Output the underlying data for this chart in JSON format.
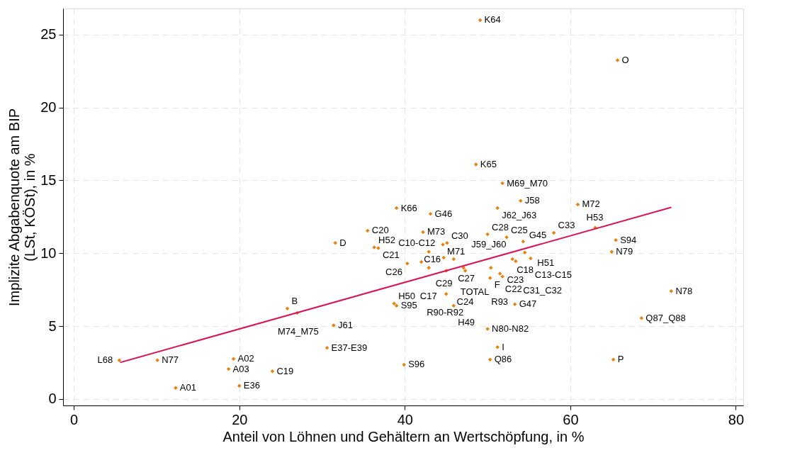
{
  "chart_data": {
    "type": "scatter",
    "xlabel": "Anteil von Löhnen und Gehältern an Wertschöpfung, in %",
    "ylabel": "Implizite Abgabenquote am BIP\n(LSt, KÖSt), in %",
    "xlim": [
      -1.3,
      80.9
    ],
    "xticks": [
      0,
      20,
      40,
      60,
      80
    ],
    "ylim": [
      -0.45,
      26.8
    ],
    "yticks": [
      0,
      5,
      10,
      15,
      20,
      25
    ],
    "grid": true,
    "series": [
      {
        "color": "#e8800c",
        "marker": "diamond",
        "x": [
          49.1,
          65.7,
          48.6,
          51.8,
          54.0,
          51.2,
          60.9,
          39.0,
          43.1,
          35.5,
          42.2,
          50.0,
          52.3,
          54.3,
          58.0,
          63.0,
          65.5,
          65.0,
          31.6,
          36.3,
          36.8,
          44.6,
          45.1,
          42.9,
          54.5,
          44.7,
          45.9,
          53.0,
          53.4,
          55.2,
          40.3,
          42.0,
          42.9,
          45.0,
          47.1,
          47.3,
          50.4,
          51.5,
          51.8,
          50.3,
          45.0,
          72.2,
          38.7,
          39.0,
          45.9,
          53.3,
          25.8,
          27.0,
          68.6,
          31.4,
          50.0,
          30.6,
          51.2,
          19.3,
          10.1,
          5.5,
          50.3,
          65.2,
          18.7,
          24.0,
          39.9,
          20.0,
          12.3
        ],
        "values": [
          26.0,
          23.25,
          16.1,
          14.8,
          13.6,
          13.1,
          13.35,
          13.1,
          12.7,
          11.55,
          11.45,
          11.3,
          11.1,
          10.8,
          11.4,
          11.75,
          10.9,
          10.1,
          10.7,
          10.4,
          10.35,
          10.6,
          10.7,
          10.1,
          10.05,
          9.7,
          9.6,
          9.6,
          9.45,
          9.65,
          9.3,
          9.4,
          9.0,
          8.8,
          9.0,
          8.8,
          9.0,
          8.6,
          8.4,
          8.3,
          7.2,
          7.4,
          6.55,
          6.4,
          6.4,
          6.5,
          6.2,
          5.9,
          5.55,
          5.05,
          4.8,
          3.5,
          3.55,
          2.75,
          2.65,
          2.65,
          2.7,
          2.7,
          2.05,
          1.9,
          2.35,
          0.9,
          0.75
        ]
      },
      {
        "type": "line",
        "color": "#d6175a",
        "line_style": "solid",
        "x": [
          5.6,
          72.2
        ],
        "values": [
          2.5,
          13.15
        ]
      }
    ],
    "annotations": [
      {
        "text": "K64",
        "x": 49.1,
        "y": 26.0
      },
      {
        "text": "O",
        "x": 65.7,
        "y": 23.25
      },
      {
        "text": "K65",
        "x": 48.6,
        "y": 16.1
      },
      {
        "text": "M69_M70",
        "x": 51.8,
        "y": 14.8
      },
      {
        "text": "J58",
        "x": 54.0,
        "y": 13.6
      },
      {
        "text": "J62_J63",
        "x": 51.2,
        "y": 13.1
      },
      {
        "text": "M72",
        "x": 60.9,
        "y": 13.35
      },
      {
        "text": "K66",
        "x": 39.0,
        "y": 13.1
      },
      {
        "text": "G46",
        "x": 43.1,
        "y": 12.7
      },
      {
        "text": "C20",
        "x": 35.5,
        "y": 11.55
      },
      {
        "text": "M73",
        "x": 42.2,
        "y": 11.45
      },
      {
        "text": "C28",
        "x": 50.0,
        "y": 11.3
      },
      {
        "text": "C25",
        "x": 52.3,
        "y": 11.1
      },
      {
        "text": "H51",
        "x": 54.3,
        "y": 10.8
      },
      {
        "text": "C33",
        "x": 58.0,
        "y": 11.4
      },
      {
        "text": "H53",
        "x": 63.0,
        "y": 11.75
      },
      {
        "text": "S94",
        "x": 65.5,
        "y": 10.9
      },
      {
        "text": "N79",
        "x": 65.0,
        "y": 10.1
      },
      {
        "text": "D",
        "x": 31.6,
        "y": 10.7
      },
      {
        "text": "H52",
        "x": 36.3,
        "y": 10.4
      },
      {
        "text": "C21",
        "x": 36.8,
        "y": 10.35
      },
      {
        "text": "M71",
        "x": 44.6,
        "y": 10.6
      },
      {
        "text": "C30",
        "x": 45.1,
        "y": 10.7
      },
      {
        "text": "C10-C12",
        "x": 42.9,
        "y": 10.1
      },
      {
        "text": "G45",
        "x": 54.5,
        "y": 10.05
      },
      {
        "text": "C27",
        "x": 44.7,
        "y": 9.7
      },
      {
        "text": "J59_J60",
        "x": 45.9,
        "y": 9.6
      },
      {
        "text": "C18",
        "x": 53.0,
        "y": 9.6
      },
      {
        "text": "C23",
        "x": 53.4,
        "y": 9.45
      },
      {
        "text": "C13-C15",
        "x": 55.2,
        "y": 9.65
      },
      {
        "text": "C26",
        "x": 40.3,
        "y": 9.3
      },
      {
        "text": "C29",
        "x": 42.0,
        "y": 9.4
      },
      {
        "text": "C17",
        "x": 42.9,
        "y": 9.0
      },
      {
        "text": "TOTAL",
        "x": 45.0,
        "y": 8.8
      },
      {
        "text": "C16",
        "x": 47.1,
        "y": 9.0
      },
      {
        "text": "C24",
        "x": 47.3,
        "y": 8.8
      },
      {
        "text": "C22",
        "x": 50.4,
        "y": 9.0
      },
      {
        "text": "R93",
        "x": 51.5,
        "y": 8.6
      },
      {
        "text": "C31_C32",
        "x": 51.8,
        "y": 8.4
      },
      {
        "text": "F",
        "x": 50.3,
        "y": 8.3
      },
      {
        "text": "R90-R92",
        "x": 45.0,
        "y": 7.2
      },
      {
        "text": "N78",
        "x": 72.2,
        "y": 7.4
      },
      {
        "text": "H50",
        "x": 38.7,
        "y": 6.55
      },
      {
        "text": "S95",
        "x": 39.0,
        "y": 6.4
      },
      {
        "text": "H49",
        "x": 45.9,
        "y": 6.4
      },
      {
        "text": "G47",
        "x": 53.3,
        "y": 6.5
      },
      {
        "text": "B",
        "x": 25.8,
        "y": 6.2
      },
      {
        "text": "M74_M75",
        "x": 27.0,
        "y": 5.9
      },
      {
        "text": "Q87_Q88",
        "x": 68.6,
        "y": 5.55
      },
      {
        "text": "J61",
        "x": 31.4,
        "y": 5.05
      },
      {
        "text": "N80-N82",
        "x": 50.0,
        "y": 4.8
      },
      {
        "text": "E37-E39",
        "x": 30.6,
        "y": 3.5
      },
      {
        "text": "I",
        "x": 51.2,
        "y": 3.55
      },
      {
        "text": "A02",
        "x": 19.3,
        "y": 2.75
      },
      {
        "text": "N77",
        "x": 10.1,
        "y": 2.65
      },
      {
        "text": "L68",
        "x": 5.5,
        "y": 2.65
      },
      {
        "text": "Q86",
        "x": 50.3,
        "y": 2.7
      },
      {
        "text": "P",
        "x": 65.2,
        "y": 2.7
      },
      {
        "text": "A03",
        "x": 18.7,
        "y": 2.05
      },
      {
        "text": "C19",
        "x": 24.0,
        "y": 1.9
      },
      {
        "text": "S96",
        "x": 39.9,
        "y": 2.35
      },
      {
        "text": "E36",
        "x": 20.0,
        "y": 0.9
      },
      {
        "text": "A01",
        "x": 12.3,
        "y": 0.75
      }
    ]
  }
}
